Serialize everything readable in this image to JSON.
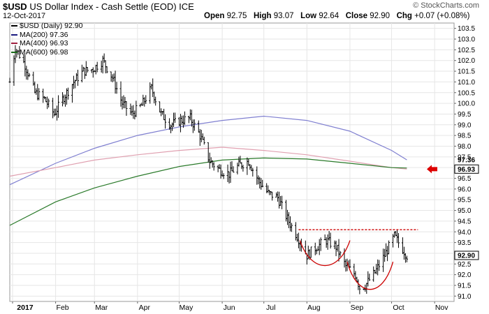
{
  "header": {
    "symbol": "$USD",
    "name": "US Dollar Index - Cash Settle (EOD)",
    "exchange": "ICE",
    "date": "12-Oct-2017",
    "open_label": "Open",
    "open": "92.75",
    "high_label": "High",
    "high": "93.07",
    "low_label": "Low",
    "low": "92.64",
    "close_label": "Close",
    "close": "92.90",
    "chg_label": "Chg",
    "chg": "+0.07 (+0.08%)",
    "brand": "© StockCharts.com"
  },
  "legend": [
    {
      "label": "$USD (Daily) 92.90",
      "color": "#000000"
    },
    {
      "label": "MA(200) 97.36",
      "color": "#1a1a80"
    },
    {
      "label": "MA(400) 96.93",
      "color": "#a02040"
    },
    {
      "label": "MA(600) 96.98",
      "color": "#1a6a1a"
    }
  ],
  "colors": {
    "price": "#000000",
    "ma200": "#7f7fd0",
    "ma400": "#e0a0b0",
    "ma600": "#2a7a2a",
    "resistance": "#cc0000",
    "arrow": "#dd0000",
    "grid": "#e6e6e6",
    "frame": "#999999"
  },
  "chart_data": {
    "type": "line",
    "title": "$USD US Dollar Index - Cash Settle (EOD) ICE",
    "ylim": [
      90.75,
      103.75
    ],
    "y_ticks": [
      "91.0",
      "91.5",
      "92.0",
      "92.5",
      "93.0",
      "93.5",
      "94.0",
      "94.5",
      "95.0",
      "95.5",
      "96.0",
      "96.5",
      "97.0",
      "97.5",
      "98.0",
      "98.5",
      "99.0",
      "99.5",
      "100.0",
      "100.5",
      "101.0",
      "101.5",
      "102.0",
      "102.5",
      "103.0",
      "103.5"
    ],
    "x_ticks": [
      {
        "label": "2017",
        "x": "2017-01-01"
      },
      {
        "label": "Feb",
        "x": "2017-02-01"
      },
      {
        "label": "Mar",
        "x": "2017-03-01"
      },
      {
        "label": "Apr",
        "x": "2017-04-01"
      },
      {
        "label": "May",
        "x": "2017-05-01"
      },
      {
        "label": "Jun",
        "x": "2017-06-01"
      },
      {
        "label": "Jul",
        "x": "2017-07-01"
      },
      {
        "label": "Aug",
        "x": "2017-08-01"
      },
      {
        "label": "Sep",
        "x": "2017-09-01"
      },
      {
        "label": "Oct",
        "x": "2017-10-01"
      },
      {
        "label": "Nov",
        "x": "2017-11-01"
      }
    ],
    "x_range": [
      "2016-12-30",
      "2017-11-15"
    ],
    "series": [
      {
        "name": "$USD (Daily)",
        "style": "ohlc_bars",
        "x": [
          "2016-12-30",
          "2017-01-03",
          "2017-01-10",
          "2017-01-17",
          "2017-01-24",
          "2017-01-31",
          "2017-02-07",
          "2017-02-14",
          "2017-02-21",
          "2017-02-28",
          "2017-03-07",
          "2017-03-14",
          "2017-03-21",
          "2017-03-28",
          "2017-04-04",
          "2017-04-11",
          "2017-04-18",
          "2017-04-25",
          "2017-05-02",
          "2017-05-09",
          "2017-05-16",
          "2017-05-23",
          "2017-05-30",
          "2017-06-06",
          "2017-06-13",
          "2017-06-20",
          "2017-06-27",
          "2017-07-04",
          "2017-07-11",
          "2017-07-18",
          "2017-07-25",
          "2017-08-01",
          "2017-08-08",
          "2017-08-15",
          "2017-08-22",
          "2017-08-29",
          "2017-09-05",
          "2017-09-08",
          "2017-09-12",
          "2017-09-19",
          "2017-09-26",
          "2017-10-03",
          "2017-10-12"
        ],
        "y": [
          101.0,
          102.6,
          101.8,
          100.5,
          100.2,
          99.5,
          100.3,
          101.0,
          101.5,
          101.6,
          102.0,
          101.2,
          100.0,
          99.5,
          99.9,
          100.7,
          99.5,
          99.0,
          99.2,
          99.3,
          98.5,
          97.3,
          96.9,
          96.7,
          97.1,
          97.3,
          96.4,
          95.8,
          95.6,
          94.6,
          93.8,
          92.9,
          93.3,
          93.6,
          93.3,
          92.4,
          92.0,
          91.4,
          91.5,
          92.1,
          92.9,
          93.8,
          92.9
        ]
      },
      {
        "name": "MA(200)",
        "x": [
          "2016-12-30",
          "2017-02-01",
          "2017-03-01",
          "2017-04-01",
          "2017-05-01",
          "2017-06-01",
          "2017-07-01",
          "2017-08-01",
          "2017-09-01",
          "2017-10-01",
          "2017-10-12"
        ],
        "y": [
          96.2,
          97.2,
          97.9,
          98.5,
          98.9,
          99.2,
          99.4,
          99.2,
          98.7,
          97.8,
          97.36
        ]
      },
      {
        "name": "MA(400)",
        "x": [
          "2016-12-30",
          "2017-02-01",
          "2017-03-01",
          "2017-04-01",
          "2017-05-01",
          "2017-06-01",
          "2017-07-01",
          "2017-08-01",
          "2017-09-01",
          "2017-10-01",
          "2017-10-12"
        ],
        "y": [
          96.6,
          97.0,
          97.35,
          97.6,
          97.8,
          97.95,
          97.8,
          97.6,
          97.3,
          97.0,
          96.93
        ]
      },
      {
        "name": "MA(600)",
        "x": [
          "2016-12-30",
          "2017-02-01",
          "2017-03-01",
          "2017-04-01",
          "2017-05-01",
          "2017-06-01",
          "2017-07-01",
          "2017-08-01",
          "2017-09-01",
          "2017-10-01",
          "2017-10-12"
        ],
        "y": [
          94.3,
          95.4,
          96.05,
          96.6,
          97.05,
          97.35,
          97.45,
          97.4,
          97.2,
          97.0,
          96.98
        ]
      }
    ],
    "resistance": {
      "y": 94.1,
      "x": [
        "2017-07-26",
        "2017-10-20"
      ]
    },
    "troughs": [
      {
        "x": [
          "2017-07-27",
          "2017-09-01"
        ],
        "y_top": 93.6,
        "y_bottom": 92.1
      },
      {
        "x": [
          "2017-08-30",
          "2017-10-02"
        ],
        "y_top": 92.6,
        "y_bottom": 90.95
      }
    ],
    "value_labels": [
      {
        "text": "97.36",
        "y": 97.36,
        "boxed": false
      },
      {
        "text": "96.93",
        "y": 96.93,
        "boxed": true
      },
      {
        "text": "92.90",
        "y": 92.9,
        "boxed": true
      }
    ]
  }
}
